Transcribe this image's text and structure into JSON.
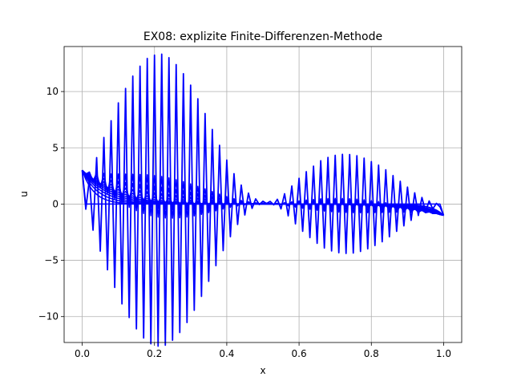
{
  "chart_data": {
    "type": "line",
    "title": "EX08: explizite Finite-Differenzen-Methode",
    "xlabel": "x",
    "ylabel": "u",
    "xlim": [
      -0.05,
      1.05
    ],
    "ylim": [
      -12.3,
      14.0
    ],
    "xticks": [
      0.0,
      0.2,
      0.4,
      0.6,
      0.8,
      1.0
    ],
    "xtick_labels": [
      "0.0",
      "0.2",
      "0.4",
      "0.6",
      "0.8",
      "1.0"
    ],
    "yticks": [
      -10,
      -5,
      0,
      5,
      10
    ],
    "ytick_labels": [
      "−10",
      "−5",
      "0",
      "5",
      "10"
    ],
    "grid": true,
    "color": "#0000ff",
    "boundary": {
      "u_left": 3,
      "u_right": -1
    },
    "envelope": {
      "x": [
        0.0,
        0.02,
        0.04,
        0.06,
        0.08,
        0.1,
        0.12,
        0.14,
        0.16,
        0.18,
        0.2,
        0.22,
        0.24,
        0.26,
        0.28,
        0.3,
        0.32,
        0.34,
        0.36,
        0.38,
        0.4,
        0.42,
        0.44,
        0.46,
        0.48,
        0.5,
        0.52,
        0.54,
        0.56,
        0.58,
        0.6,
        0.62,
        0.64,
        0.66,
        0.68,
        0.7,
        0.72,
        0.74,
        0.76,
        0.78,
        0.8,
        0.82,
        0.84,
        0.86,
        0.88,
        0.9,
        0.92,
        0.94,
        0.96,
        0.98,
        1.0
      ],
      "amplitude": [
        0,
        1.8,
        3.7,
        5.5,
        7.0,
        8.6,
        9.9,
        11.0,
        11.9,
        12.6,
        12.9,
        13.0,
        12.7,
        12.1,
        11.3,
        10.3,
        9.1,
        7.8,
        6.4,
        5.0,
        3.7,
        2.5,
        1.5,
        0.8,
        0.3,
        0.1,
        0.1,
        0.3,
        0.8,
        1.5,
        2.2,
        2.8,
        3.3,
        3.8,
        4.1,
        4.3,
        4.4,
        4.4,
        4.3,
        4.1,
        3.8,
        3.5,
        3.1,
        2.6,
        2.1,
        1.6,
        1.1,
        0.7,
        0.4,
        0.2,
        0
      ]
    },
    "series_count": 12
  }
}
